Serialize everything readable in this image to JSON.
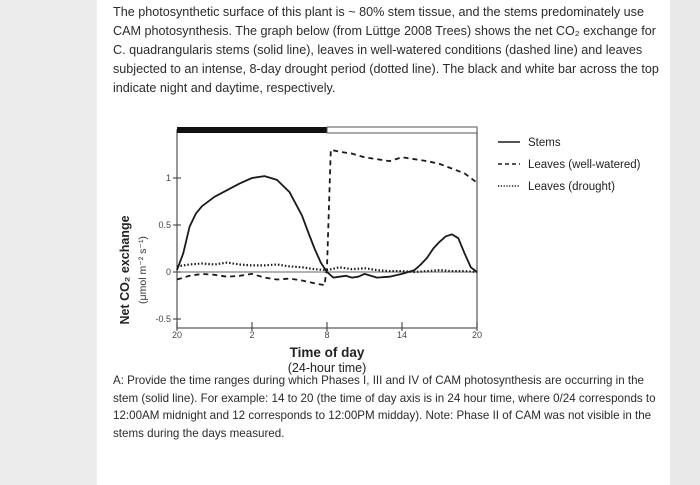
{
  "intro_text": "The photosynthetic surface of this plant is ~ 80% stem tissue, and the stems predominately use CAM photosynthesis. The graph below (from Lüttge 2008 Trees) shows the net CO₂ exchange for C. quadrangularis stems (solid line), leaves in well-watered conditions (dashed line) and leaves subjected to an intense, 8-day drought period (dotted line). The black and white bar across the top indicate night and daytime, respectively.",
  "question_text": "A: Provide the time ranges during which Phases I, III and IV of CAM photosynthesis are occurring in the stem (solid line). For example: 14 to 20 (the time of day axis is in 24 hour time, where 0/24 corresponds to 12:00AM midnight and 12 corresponds to 12:00PM midday). Note: Phase II of CAM was not visible in the stems during the days measured.",
  "colors": {
    "line": "#1a1a1a",
    "night_bar": "#111111",
    "frame": "#555555"
  },
  "chart_data": {
    "type": "line",
    "xlabel": "Time of day",
    "xlabel_sub": "(24-hour time)",
    "ylabel": "Net CO₂ exchange",
    "ylabel_sub": "(μmol m⁻² s⁻¹)",
    "x_tick_labels": [
      "20",
      "2",
      "8",
      "14",
      "20"
    ],
    "x_tick_values": [
      0,
      6,
      12,
      18,
      24
    ],
    "y_tick_labels": [
      "1",
      "0.5",
      "0",
      "-0.5"
    ],
    "y_tick_values": [
      1,
      0.5,
      0,
      -0.5
    ],
    "xlim": [
      0,
      24
    ],
    "ylim": [
      -0.55,
      1.4
    ],
    "night_bar": {
      "from": 0,
      "to": 12
    },
    "legend": [
      "Stems",
      "Leaves (well-watered)",
      "Leaves (drought)"
    ],
    "series": [
      {
        "name": "Stems",
        "style": "solid",
        "x": [
          0,
          0.5,
          1,
          1.5,
          2,
          3,
          4,
          5,
          6,
          7,
          8,
          9,
          10,
          10.5,
          11,
          11.5,
          12,
          12.5,
          13,
          13.5,
          14,
          14.5,
          15,
          16,
          17,
          18,
          19,
          19.5,
          20,
          20.5,
          21,
          21.5,
          22,
          22.5,
          23,
          23.5,
          24
        ],
        "y": [
          0.02,
          0.2,
          0.48,
          0.62,
          0.7,
          0.8,
          0.87,
          0.94,
          1.0,
          1.02,
          0.98,
          0.85,
          0.6,
          0.42,
          0.25,
          0.1,
          0.0,
          -0.06,
          -0.05,
          -0.04,
          -0.06,
          -0.05,
          -0.02,
          -0.06,
          -0.05,
          -0.02,
          0.02,
          0.08,
          0.15,
          0.25,
          0.32,
          0.38,
          0.4,
          0.36,
          0.2,
          0.05,
          0.0
        ]
      },
      {
        "name": "Leaves (well-watered)",
        "style": "dashed",
        "x": [
          0,
          1,
          2,
          3,
          4,
          5,
          6,
          7,
          8,
          9,
          10,
          11,
          11.8,
          12,
          12.3,
          13,
          14,
          15,
          16,
          17,
          18,
          19,
          20,
          21,
          22,
          23,
          24
        ],
        "y": [
          -0.08,
          -0.04,
          -0.02,
          -0.03,
          -0.05,
          -0.04,
          -0.02,
          -0.06,
          -0.08,
          -0.07,
          -0.09,
          -0.12,
          -0.14,
          0.05,
          1.3,
          1.28,
          1.26,
          1.22,
          1.2,
          1.18,
          1.22,
          1.2,
          1.18,
          1.15,
          1.1,
          1.05,
          0.95
        ]
      },
      {
        "name": "Leaves (drought)",
        "style": "dotted",
        "x": [
          0,
          1,
          2,
          3,
          4,
          5,
          6,
          7,
          8,
          9,
          10,
          11,
          12,
          13,
          14,
          15,
          16,
          17,
          18,
          19,
          20,
          21,
          22,
          23,
          24
        ],
        "y": [
          0.06,
          0.08,
          0.09,
          0.08,
          0.1,
          0.08,
          0.07,
          0.07,
          0.08,
          0.06,
          0.05,
          0.03,
          0.02,
          0.05,
          0.03,
          0.04,
          0.02,
          0.01,
          0.01,
          0.0,
          0.01,
          0.02,
          0.01,
          0.01,
          0.0
        ]
      }
    ]
  }
}
